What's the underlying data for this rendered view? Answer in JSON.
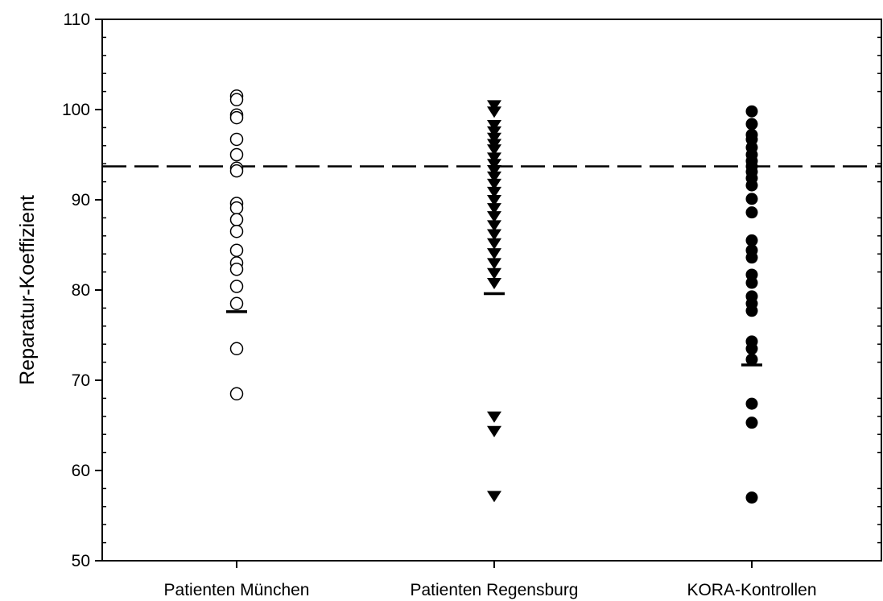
{
  "chart_data": {
    "type": "scatter",
    "title": "",
    "xlabel": "",
    "ylabel": "Reparatur-Koeffizient",
    "ylim": [
      50,
      110
    ],
    "y_ticks": [
      "50",
      "60",
      "70",
      "80",
      "90",
      "100",
      "110"
    ],
    "grid": false,
    "legend": "none",
    "reference_line": {
      "y": 93.7,
      "style": "dashed"
    },
    "categories": [
      "Patienten München",
      "Patienten Regensburg",
      "KORA-Kontrollen"
    ],
    "series": [
      {
        "category": "Patienten München",
        "marker": "open-circle",
        "values": [
          101.5,
          101.1,
          99.4,
          99.1,
          96.7,
          95.0,
          93.5,
          93.2,
          89.6,
          89.1,
          87.8,
          86.5,
          84.4,
          83.0,
          82.3,
          80.4,
          78.5,
          73.5,
          68.5
        ],
        "cutoff": 77.6
      },
      {
        "category": "Patienten Regensburg",
        "marker": "filled-triangle-down",
        "values": [
          100.5,
          99.8,
          98.3,
          97.6,
          96.9,
          96.2,
          95.6,
          94.7,
          94.0,
          93.3,
          92.6,
          91.8,
          90.9,
          90.0,
          89.1,
          88.2,
          87.2,
          86.2,
          85.2,
          84.1,
          83.0,
          81.9,
          80.8,
          66.0,
          64.4,
          57.2
        ],
        "cutoff": 79.6
      },
      {
        "category": "KORA-Kontrollen",
        "marker": "filled-circle",
        "values": [
          99.8,
          98.4,
          97.2,
          96.7,
          95.8,
          95.0,
          94.3,
          93.7,
          93.1,
          92.4,
          91.6,
          90.1,
          88.6,
          85.5,
          84.4,
          83.6,
          81.7,
          80.8,
          79.3,
          78.5,
          77.7,
          74.3,
          73.5,
          72.3,
          67.4,
          65.3,
          57.0
        ],
        "cutoff": 71.7
      }
    ],
    "colors": {
      "axis": "#000000",
      "marker": "#000000",
      "open_fill": "#ffffff",
      "background": "#ffffff"
    }
  }
}
